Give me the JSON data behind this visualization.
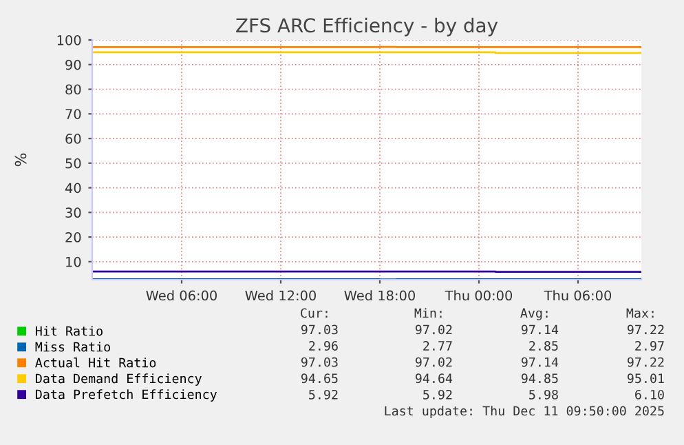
{
  "chart_data": {
    "type": "step",
    "title": "ZFS ARC Efficiency - by day",
    "ylabel": "%",
    "x": [
      "2025-12-10T00:35",
      "2025-12-10T18:00",
      "2025-12-10T19:00",
      "2025-12-11T01:00",
      "2025-12-11T09:50"
    ],
    "series": [
      {
        "name": "Hit Ratio",
        "color": "#00cc00",
        "values": [
          null,
          null,
          null,
          null,
          null
        ]
      },
      {
        "name": "Miss Ratio",
        "color": "#0066b3",
        "values": [
          2.9,
          2.8,
          2.9,
          2.9,
          3.0
        ]
      },
      {
        "name": "Actual Hit Ratio",
        "color": "#ff8000",
        "values": [
          97.1,
          97.2,
          97.1,
          97.1,
          97.0
        ]
      },
      {
        "name": "Data Demand Efficiency",
        "color": "#ffcc00",
        "values": [
          95.0,
          95.0,
          95.0,
          94.7,
          94.7
        ]
      },
      {
        "name": "Data Prefetch Efficiency",
        "color": "#330099",
        "values": [
          6.0,
          6.0,
          6.0,
          5.9,
          5.9
        ]
      }
    ],
    "xlim": [
      "2025-12-10T00:35",
      "2025-12-11T09:50"
    ],
    "xticks": [
      {
        "value": "2025-12-10T06:00",
        "label": "Wed 06:00"
      },
      {
        "value": "2025-12-10T12:00",
        "label": "Wed 12:00"
      },
      {
        "value": "2025-12-10T18:00",
        "label": "Wed 18:00"
      },
      {
        "value": "2025-12-11T00:00",
        "label": "Thu 00:00"
      },
      {
        "value": "2025-12-11T06:00",
        "label": "Thu 06:00"
      }
    ],
    "ylim": [
      2.7,
      100
    ],
    "yticks": [
      10,
      20,
      30,
      40,
      50,
      60,
      70,
      80,
      90,
      100
    ],
    "grid": true,
    "legend": "bottom left",
    "marker": "none",
    "line_style": "solid",
    "annotations": [
      "Cur:",
      "Min:",
      "Avg:",
      "Max:",
      "97.03",
      "97.02",
      "97.14",
      "97.22",
      "2.96",
      "2.77",
      "2.85",
      "2.97",
      "97.03",
      "97.02",
      "97.14",
      "97.22",
      "94.65",
      "94.64",
      "94.85",
      "95.01",
      "5.92",
      "5.92",
      "5.98",
      "6.10",
      "Last update: Thu Dec 11 09:50:00 2025"
    ]
  }
}
